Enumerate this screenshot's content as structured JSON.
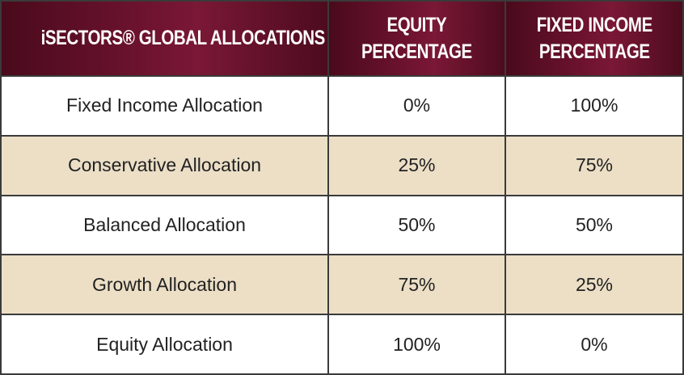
{
  "table": {
    "headers": {
      "allocation": "iSECTORS® GLOBAL ALLOCATIONS",
      "equity": "EQUITY\nPERCENTAGE",
      "fixed_income": "FIXED INCOME\nPERCENTAGE"
    },
    "rows": [
      {
        "name": "Fixed Income Allocation",
        "equity": "0%",
        "fixed_income": "100%"
      },
      {
        "name": "Conservative Allocation",
        "equity": "25%",
        "fixed_income": "75%"
      },
      {
        "name": "Balanced Allocation",
        "equity": "50%",
        "fixed_income": "50%"
      },
      {
        "name": "Growth Allocation",
        "equity": "75%",
        "fixed_income": "25%"
      },
      {
        "name": "Equity Allocation",
        "equity": "100%",
        "fixed_income": "0%"
      }
    ]
  },
  "colors": {
    "header_bg": "#6e1330",
    "header_text": "#ffffff",
    "row_alt_bg": "#ecdfc6",
    "border": "#3a3a3a"
  }
}
